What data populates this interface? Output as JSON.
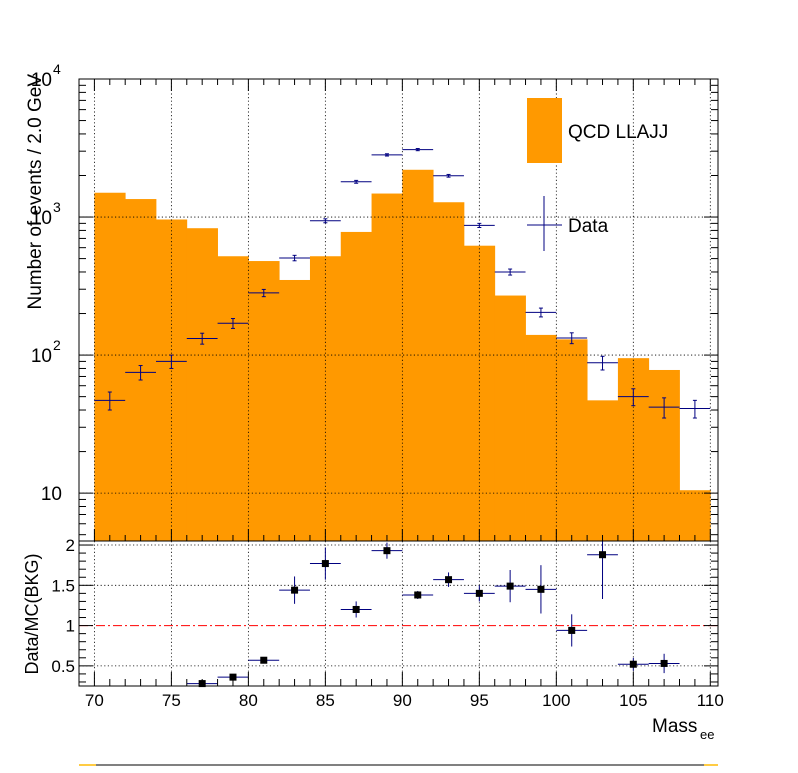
{
  "chart_data": [
    {
      "type": "bar",
      "panel": "main",
      "ylabel": "Number of events / 2.0 GeV",
      "yscale": "log",
      "xlim": [
        69,
        110.5
      ],
      "ylim": [
        4.5,
        10000
      ],
      "grid": true,
      "legend": {
        "placement": "top-right",
        "entries": [
          {
            "name": "QCD LLAJJ",
            "kind": "filled-box",
            "color": "#ff9900"
          },
          {
            "name": "Data",
            "kind": "error-cross",
            "color": "#000080"
          }
        ]
      },
      "y_ticks": [
        {
          "v": 10,
          "label": "10"
        },
        {
          "v": 100,
          "label": "10",
          "exp": "2"
        },
        {
          "v": 1000,
          "label": "10",
          "exp": "3"
        },
        {
          "v": 10000,
          "label": "10",
          "exp": "4"
        }
      ],
      "series": [
        {
          "name": "QCD LLAJJ",
          "kind": "histogram",
          "color": "#ff9900",
          "bin_edges": [
            70,
            72,
            74,
            76,
            78,
            80,
            82,
            84,
            86,
            88,
            90,
            92,
            94,
            96,
            98,
            100,
            102,
            104,
            106,
            108,
            110
          ],
          "values": [
            1500,
            1350,
            960,
            830,
            520,
            480,
            350,
            520,
            780,
            1480,
            2200,
            1280,
            620,
            270,
            140,
            130,
            47,
            95,
            78,
            10.5
          ]
        },
        {
          "name": "Data",
          "kind": "points-with-errors",
          "color": "#000080",
          "x": [
            71,
            73,
            75,
            77,
            79,
            81,
            83,
            85,
            87,
            89,
            91,
            93,
            95,
            97,
            99,
            101,
            103,
            105,
            107,
            109
          ],
          "y": [
            47,
            75,
            90,
            132,
            170,
            282,
            505,
            940,
            1800,
            2820,
            3080,
            1990,
            870,
            400,
            204,
            133,
            88,
            50,
            42,
            41
          ],
          "y_err": [
            7,
            9,
            10,
            12,
            14,
            17,
            23,
            31,
            43,
            53,
            55,
            45,
            30,
            20,
            15,
            12,
            10,
            7,
            7,
            6
          ]
        }
      ]
    },
    {
      "type": "scatter",
      "panel": "ratio",
      "xlabel": "Mass",
      "xlabel_sub": "ee",
      "ylabel": "Data/MC(BKG)",
      "xlim": [
        69,
        110.5
      ],
      "ylim": [
        0.25,
        2.05
      ],
      "grid": true,
      "reference_line": {
        "y": 1,
        "color": "#ff0000",
        "style": "dash-dot"
      },
      "x_ticks": [
        70,
        75,
        80,
        85,
        90,
        95,
        100,
        105,
        110
      ],
      "y_ticks": [
        {
          "v": 0.5,
          "label": "0.5"
        },
        {
          "v": 1,
          "label": "1"
        },
        {
          "v": 1.5,
          "label": "1.5"
        },
        {
          "v": 2,
          "label": "2"
        }
      ],
      "series": [
        {
          "name": "",
          "color": "#000000",
          "x": [
            77,
            79,
            81,
            83,
            85,
            87,
            89,
            91,
            93,
            95,
            97,
            99,
            101,
            103,
            105,
            107
          ],
          "y": [
            0.28,
            0.36,
            0.57,
            1.44,
            1.77,
            1.2,
            1.93,
            1.38,
            1.57,
            1.4,
            1.49,
            1.45,
            0.94,
            1.88,
            0.52,
            0.53
          ],
          "y_err": [
            0.03,
            0.03,
            0.04,
            0.17,
            0.2,
            0.1,
            0.1,
            0.05,
            0.09,
            0.1,
            0.2,
            0.3,
            0.2,
            0.55,
            0.08,
            0.12
          ]
        }
      ]
    }
  ]
}
